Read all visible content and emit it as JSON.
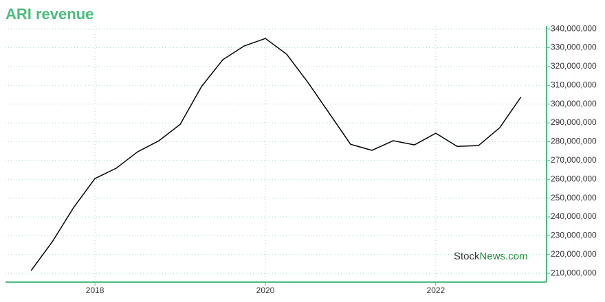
{
  "chart_data": {
    "type": "line",
    "title": "ARI revenue",
    "x": [
      2017.25,
      2017.5,
      2017.75,
      2018.0,
      2018.25,
      2018.5,
      2018.75,
      2019.0,
      2019.25,
      2019.5,
      2019.75,
      2020.0,
      2020.25,
      2020.5,
      2020.75,
      2021.0,
      2021.25,
      2021.5,
      2021.75,
      2022.0,
      2022.25,
      2022.5,
      2022.75,
      2023.0
    ],
    "series": [
      {
        "name": "ARI revenue",
        "color": "#000000",
        "values": [
          211400000,
          226800000,
          245000000,
          260400000,
          265900000,
          274600000,
          280500000,
          289200000,
          309300000,
          323600000,
          330900000,
          334900000,
          326500000,
          311500000,
          295100000,
          278600000,
          275400000,
          280500000,
          278300000,
          284500000,
          277500000,
          277900000,
          287400000,
          303800000
        ]
      }
    ],
    "xlim": [
      2016.95,
      2023.3
    ],
    "xticks": [
      2018,
      2020,
      2022
    ],
    "ylim": [
      205300000,
      341500000
    ],
    "yticks": [
      {
        "value": 210000000,
        "label": "210,000,000"
      },
      {
        "value": 220000000,
        "label": "220,000,000"
      },
      {
        "value": 230000000,
        "label": "230,000,000"
      },
      {
        "value": 240000000,
        "label": "240,000,000"
      },
      {
        "value": 250000000,
        "label": "250,000,000"
      },
      {
        "value": 260000000,
        "label": "260,000,000"
      },
      {
        "value": 270000000,
        "label": "270,000,000"
      },
      {
        "value": 280000000,
        "label": "280,000,000"
      },
      {
        "value": 290000000,
        "label": "290,000,000"
      },
      {
        "value": 300000000,
        "label": "300,000,000"
      },
      {
        "value": 310000000,
        "label": "310,000,000"
      },
      {
        "value": 320000000,
        "label": "320,000,000"
      },
      {
        "value": 330000000,
        "label": "330,000,000"
      },
      {
        "value": 340000000,
        "label": "340,000,000"
      }
    ],
    "grid": true,
    "axis_color": "#4cbb7f",
    "grid_color": "#a8d8d0",
    "watermark": {
      "first": "Stock",
      "second": "News.com",
      "second_color": "#1e8c3a"
    }
  }
}
